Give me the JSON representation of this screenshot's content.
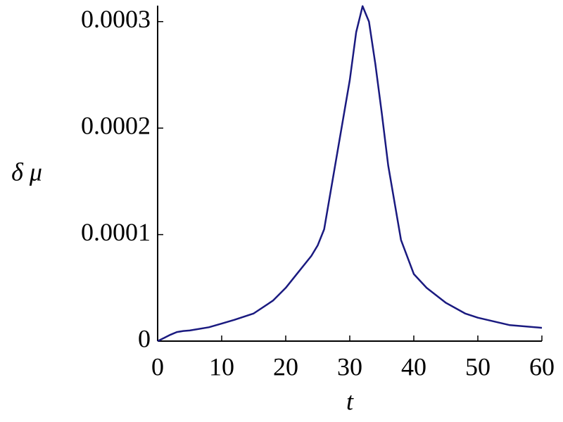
{
  "chart_data": {
    "type": "line",
    "x_label": "t",
    "y_label": "δ μ",
    "x": [
      0,
      1,
      2,
      3,
      4,
      5,
      8,
      10,
      12,
      15,
      18,
      20,
      22,
      24,
      25,
      26,
      28,
      29,
      30,
      31,
      32,
      33,
      34,
      35,
      36,
      38,
      40,
      42,
      45,
      48,
      50,
      55,
      60
    ],
    "series": [
      {
        "name": "δ μ",
        "color": "#1a1a80",
        "values": [
          0,
          3e-06,
          6e-06,
          8.5e-06,
          9.5e-06,
          1e-05,
          1.3e-05,
          1.65e-05,
          2e-05,
          2.6e-05,
          3.8e-05,
          5e-05,
          6.5e-05,
          8e-05,
          9e-05,
          0.000105,
          0.000175,
          0.00021,
          0.000245,
          0.00029,
          0.0003145,
          0.0003,
          0.00026,
          0.000214,
          0.000165,
          9.5e-05,
          6.3e-05,
          5e-05,
          3.6e-05,
          2.6e-05,
          2.2e-05,
          1.5e-05,
          1.25e-05
        ]
      }
    ],
    "xlim": [
      0,
      60
    ],
    "xticks": [
      0,
      10,
      20,
      30,
      40,
      50,
      60
    ],
    "ylim": [
      0,
      0.000315
    ],
    "yticks": [
      0,
      0.0001,
      0.0002,
      0.0003
    ]
  }
}
